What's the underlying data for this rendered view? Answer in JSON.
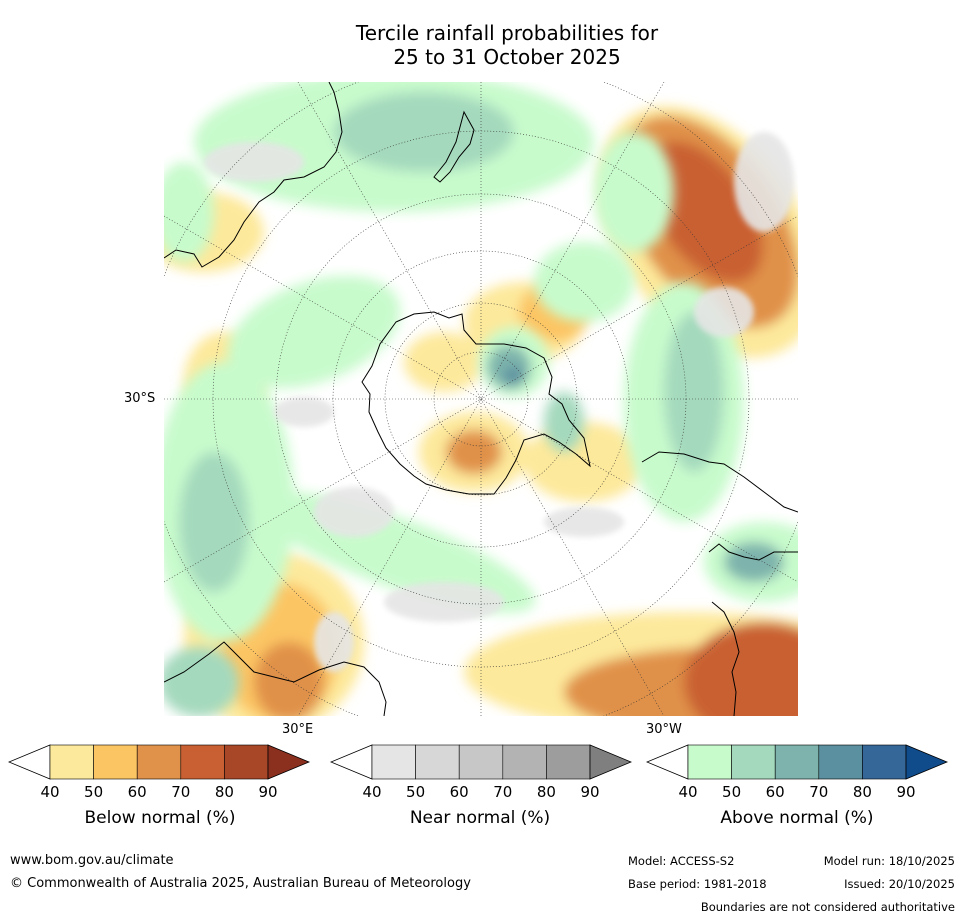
{
  "title": {
    "line1": "Tercile rainfall probabilities for",
    "line2": "25 to 31 October 2025"
  },
  "map": {
    "projection": "south-polar-stereographic",
    "lat_label": "30°S",
    "lon_labels": {
      "east": "30°E",
      "west": "30°W"
    },
    "regions": {
      "below_normal_patches": [
        "north-east Pacific band",
        "South Africa/southern Indian Ocean",
        "south-east Pacific/Chile",
        "East Antarctica/Ross Sea",
        "Queensland"
      ],
      "near_normal_patches": [
        "scattered"
      ],
      "above_normal_patches": [
        "Tasman/New Zealand",
        "Antarctic Peninsula",
        "south Atlantic",
        "Indian Ocean"
      ]
    }
  },
  "colorbars": [
    {
      "id": "below",
      "title": "Below normal (%)",
      "ticks": [
        "40",
        "50",
        "60",
        "70",
        "80",
        "90"
      ],
      "colors": [
        "#ffffff",
        "#fde99b",
        "#fcc564",
        "#e0914a",
        "#c96033",
        "#a84628",
        "#8b2f1f"
      ]
    },
    {
      "id": "near",
      "title": "Near normal (%)",
      "ticks": [
        "40",
        "50",
        "60",
        "70",
        "80",
        "90"
      ],
      "colors": [
        "#ffffff",
        "#e5e5e5",
        "#d7d7d7",
        "#c7c7c7",
        "#b3b3b3",
        "#9d9d9d",
        "#7f7f7f"
      ]
    },
    {
      "id": "above",
      "title": "Above normal (%)",
      "ticks": [
        "40",
        "50",
        "60",
        "70",
        "80",
        "90"
      ],
      "colors": [
        "#ffffff",
        "#c8fbcc",
        "#a4d9bd",
        "#7db3ac",
        "#5a90a0",
        "#356798",
        "#104c8c"
      ]
    }
  ],
  "footer": {
    "website": "www.bom.gov.au/climate",
    "copyright": "© Commonwealth of Australia 2025, Australian Bureau of Meteorology",
    "model": "Model: ACCESS-S2",
    "model_run": "Model run: 18/10/2025",
    "base_period": "Base period: 1981-2018",
    "issued": "Issued: 20/10/2025",
    "disclaimer": "Boundaries are not considered authoritative"
  }
}
